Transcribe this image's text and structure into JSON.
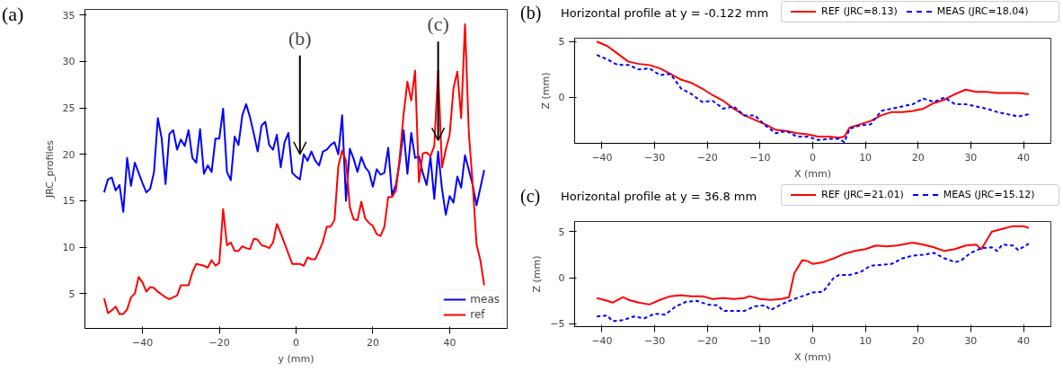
{
  "chart_data": [
    {
      "type": "line",
      "title": "(a)",
      "xlabel": "y (mm)",
      "ylabel": "JRC_profiles",
      "xlim": [
        -55,
        55
      ],
      "ylim": [
        1.25,
        35.6
      ],
      "xticks": [
        -40,
        -20,
        0,
        20,
        40
      ],
      "yticks": [
        5,
        10,
        15,
        20,
        25,
        30,
        35
      ],
      "grid": false,
      "legend": "bottom right",
      "annotations": [
        {
          "text": "(b)",
          "x": 1,
          "y": 20.0
        },
        {
          "text": "(c)",
          "x": 37,
          "y": 21.5
        }
      ],
      "series": [
        {
          "name": "meas",
          "color": "#0000ff",
          "x": [
            -50,
            -49,
            -48,
            -47,
            -46,
            -45,
            -44,
            -43,
            -42,
            -41,
            -40,
            -39,
            -38,
            -37,
            -36,
            -35,
            -34,
            -33,
            -32,
            -31,
            -30,
            -29,
            -28,
            -27,
            -26,
            -25,
            -24,
            -23,
            -22,
            -21,
            -20,
            -19,
            -18,
            -17,
            -16,
            -15,
            -14,
            -13,
            -12,
            -11,
            -10,
            -9,
            -8,
            -7,
            -6,
            -5,
            -4,
            -3,
            -2,
            -1,
            0,
            1,
            2,
            3,
            4,
            5,
            6,
            7,
            8,
            9,
            10,
            11,
            12,
            13,
            14,
            15,
            16,
            17,
            18,
            19,
            20,
            21,
            22,
            23,
            24,
            25,
            26,
            27,
            28,
            29,
            30,
            31,
            32,
            33,
            34,
            35,
            36,
            37,
            38,
            39,
            40,
            41,
            42,
            43,
            44,
            45,
            46,
            47,
            48,
            49
          ],
          "values": [
            15.9,
            17.3,
            17.5,
            16.1,
            16.7,
            13.8,
            19.6,
            16.6,
            19.1,
            18.0,
            16.9,
            15.9,
            16.3,
            18.1,
            23.9,
            21.7,
            16.8,
            22.2,
            22.6,
            20.5,
            21.6,
            20.9,
            22.6,
            19.6,
            19.1,
            22.7,
            17.9,
            18.8,
            18.1,
            21.7,
            21.7,
            24.9,
            18.1,
            17.2,
            21.9,
            21.0,
            24.2,
            25.4,
            24.0,
            22.2,
            20.3,
            23.1,
            23.5,
            21.0,
            20.5,
            22.1,
            18.6,
            21.3,
            22.3,
            18.0,
            17.6,
            17.3,
            20.0,
            19.3,
            20.3,
            19.3,
            18.8,
            20.3,
            20.5,
            21.0,
            21.3,
            20.0,
            24.2,
            15.0,
            20.6,
            19.5,
            18.1,
            19.7,
            18.6,
            18.1,
            16.5,
            18.4,
            17.8,
            18.0,
            20.7,
            15.6,
            16.7,
            19.2,
            22.6,
            17.9,
            22.3,
            19.6,
            19.8,
            18.0,
            16.7,
            19.7,
            15.2,
            20.3,
            16.3,
            13.5,
            15.5,
            14.8,
            17.6,
            16.4,
            19.9,
            18.3,
            16.7,
            14.5,
            16.4,
            18.3
          ]
        },
        {
          "name": "ref",
          "color": "#ff0000",
          "x": [
            -50,
            -49,
            -48,
            -47,
            -46,
            -45,
            -44,
            -43,
            -42,
            -41,
            -40,
            -39,
            -38,
            -37,
            -36,
            -35,
            -34,
            -33,
            -32,
            -31,
            -30,
            -29,
            -28,
            -27,
            -26,
            -25,
            -24,
            -23,
            -22,
            -21,
            -20,
            -19,
            -18,
            -17,
            -16,
            -15,
            -14,
            -13,
            -12,
            -11,
            -10,
            -9,
            -8,
            -7,
            -6,
            -5,
            -4,
            -3,
            -2,
            -1,
            0,
            1,
            2,
            3,
            4,
            5,
            6,
            7,
            8,
            9,
            10,
            11,
            12,
            13,
            14,
            15,
            16,
            17,
            18,
            19,
            20,
            21,
            22,
            23,
            24,
            25,
            26,
            27,
            28,
            29,
            30,
            31,
            32,
            33,
            34,
            35,
            36,
            37,
            38,
            39,
            40,
            41,
            42,
            43,
            44,
            45,
            46,
            47,
            48,
            49
          ],
          "values": [
            4.5,
            2.9,
            3.2,
            3.6,
            2.8,
            2.8,
            3.3,
            4.6,
            5.0,
            6.8,
            6.2,
            5.2,
            5.7,
            5.6,
            5.2,
            4.9,
            4.6,
            4.4,
            4.6,
            4.8,
            5.9,
            5.9,
            5.9,
            7.3,
            8.2,
            8.1,
            8.0,
            7.8,
            8.6,
            8.0,
            8.3,
            14.1,
            10.2,
            10.5,
            9.6,
            9.6,
            10.1,
            9.9,
            9.8,
            10.9,
            10.8,
            10.2,
            10.1,
            9.9,
            10.5,
            12.5,
            11.5,
            10.4,
            9.3,
            8.2,
            8.2,
            8.2,
            8.0,
            8.9,
            8.7,
            8.7,
            9.6,
            10.6,
            12.2,
            12.2,
            12.9,
            18.7,
            20.4,
            19.3,
            14.3,
            13.0,
            12.9,
            14.9,
            13.1,
            12.6,
            12.3,
            11.4,
            11.2,
            12.2,
            15.4,
            15.4,
            16.1,
            19.7,
            24.3,
            27.8,
            25.8,
            29.0,
            17.0,
            20.1,
            20.2,
            19.8,
            20.9,
            29.0,
            18.6,
            20.5,
            22.1,
            27.1,
            28.9,
            23.9,
            34.0,
            22.3,
            16.8,
            10.3,
            8.6,
            5.9
          ]
        }
      ]
    },
    {
      "type": "line",
      "title": "Horizontal profile at y = -0.122 mm",
      "xlabel": "X (mm)",
      "ylabel": "Z (mm)",
      "xlim": [
        -45.2,
        45.2
      ],
      "ylim": [
        -4.1,
        5.3
      ],
      "xticks": [
        -40,
        -30,
        -20,
        -10,
        0,
        10,
        20,
        30,
        40
      ],
      "yticks": [
        0,
        5
      ],
      "grid": false,
      "legend": "top",
      "annotations": [
        "(b)"
      ],
      "series": [
        {
          "name": "REF (JRC=8.13)",
          "color": "#ff0000",
          "line_style": "solid",
          "x": [
            -41,
            -39,
            -37,
            -35,
            -33,
            -31,
            -29,
            -27,
            -25,
            -23,
            -21,
            -19,
            -17,
            -15,
            -13,
            -11,
            -9,
            -7,
            -5,
            -3,
            -1,
            1,
            3,
            5,
            6,
            7,
            9,
            11,
            13,
            15,
            17,
            19,
            21,
            23,
            25,
            27,
            29,
            31,
            33,
            35,
            37,
            39,
            41
          ],
          "values": [
            5.0,
            4.6,
            3.9,
            3.2,
            3.0,
            2.9,
            2.6,
            2.1,
            1.6,
            1.3,
            0.8,
            0.2,
            -0.3,
            -1.0,
            -1.6,
            -2.0,
            -2.4,
            -2.9,
            -3.0,
            -3.2,
            -3.3,
            -3.5,
            -3.5,
            -3.6,
            -3.5,
            -2.7,
            -2.4,
            -2.1,
            -1.6,
            -1.3,
            -1.3,
            -1.2,
            -1.0,
            -0.5,
            -0.2,
            0.3,
            0.7,
            0.5,
            0.5,
            0.4,
            0.4,
            0.4,
            0.3
          ]
        },
        {
          "name": "MEAS (JRC=18.04)",
          "color": "#0000ff",
          "line_style": "dashed",
          "x": [
            -41,
            -39,
            -37,
            -35,
            -33,
            -31,
            -29,
            -27,
            -25,
            -23,
            -21,
            -19,
            -17,
            -15,
            -13,
            -11,
            -9,
            -7,
            -5,
            -3,
            -1,
            1,
            3,
            5,
            6,
            7,
            9,
            11,
            13,
            15,
            17,
            19,
            21,
            23,
            25,
            27,
            29,
            31,
            33,
            35,
            37,
            39,
            41
          ],
          "values": [
            3.8,
            3.4,
            2.9,
            2.9,
            2.5,
            2.6,
            2.0,
            2.1,
            0.8,
            0.3,
            -0.4,
            -0.3,
            -1.0,
            -0.8,
            -1.6,
            -1.6,
            -2.5,
            -3.2,
            -3.0,
            -3.5,
            -3.5,
            -3.8,
            -3.7,
            -3.7,
            -4.0,
            -2.8,
            -2.5,
            -2.4,
            -1.2,
            -1.0,
            -0.8,
            -0.6,
            -0.1,
            -0.4,
            0.0,
            -0.6,
            -0.6,
            -0.8,
            -1.0,
            -1.3,
            -1.5,
            -1.7,
            -1.5
          ]
        }
      ]
    },
    {
      "type": "line",
      "title": "Horizontal profile at y = 36.8 mm",
      "xlabel": "X (mm)",
      "ylabel": "Z (mm)",
      "xlim": [
        -45.2,
        45.2
      ],
      "ylim": [
        -5.3,
        6.1
      ],
      "xticks": [
        -40,
        -30,
        -20,
        -10,
        0,
        10,
        20,
        30,
        40
      ],
      "yticks": [
        -5,
        0,
        5
      ],
      "grid": false,
      "legend": "top",
      "annotations": [
        "(c)"
      ],
      "series": [
        {
          "name": "REF (JRC=21.01)",
          "color": "#ff0000",
          "line_style": "solid",
          "x": [
            -41,
            -39,
            -38,
            -36,
            -35,
            -33,
            -31,
            -29,
            -27,
            -25,
            -23,
            -21,
            -19,
            -17,
            -15,
            -13,
            -12,
            -10,
            -8,
            -6,
            -4.5,
            -3.5,
            -2,
            -1,
            0,
            2,
            4,
            6,
            8,
            10,
            12,
            14,
            16,
            19,
            21,
            23,
            25,
            27,
            29,
            31,
            32,
            34,
            36,
            38,
            40,
            41
          ],
          "values": [
            -2.2,
            -2.5,
            -2.7,
            -2.1,
            -2.4,
            -2.7,
            -2.9,
            -2.4,
            -2.0,
            -1.9,
            -2.0,
            -2.0,
            -2.3,
            -2.2,
            -2.3,
            -2.2,
            -2.0,
            -2.3,
            -2.4,
            -2.3,
            -2.1,
            0.5,
            1.9,
            1.8,
            1.5,
            1.7,
            2.1,
            2.6,
            2.9,
            3.1,
            3.5,
            3.4,
            3.5,
            3.8,
            3.6,
            3.3,
            2.9,
            3.1,
            3.5,
            3.6,
            3.1,
            5.0,
            5.3,
            5.6,
            5.6,
            5.4
          ]
        },
        {
          "name": "MEAS (JRC=15.12)",
          "color": "#0000ff",
          "line_style": "dashed",
          "x": [
            -41,
            -39,
            -38,
            -36,
            -34,
            -32,
            -30,
            -28,
            -26,
            -24,
            -22,
            -20,
            -18,
            -17,
            -15,
            -13,
            -11,
            -9,
            -8,
            -6,
            -4,
            -2,
            0,
            2,
            4,
            5,
            7,
            9,
            11,
            13,
            15,
            17,
            19,
            21,
            23,
            25,
            27,
            28,
            30,
            32,
            34,
            35,
            36,
            38,
            39,
            41
          ],
          "values": [
            -4.2,
            -4.1,
            -4.7,
            -4.6,
            -4.2,
            -4.4,
            -3.9,
            -4.0,
            -3.1,
            -2.6,
            -2.5,
            -2.9,
            -3.0,
            -3.6,
            -3.6,
            -3.6,
            -3.1,
            -3.0,
            -3.5,
            -2.9,
            -2.4,
            -2.0,
            -1.6,
            -1.5,
            0.0,
            0.3,
            0.3,
            0.6,
            1.3,
            1.4,
            1.5,
            2.1,
            2.4,
            2.5,
            2.7,
            2.1,
            1.7,
            1.8,
            2.7,
            3.2,
            3.3,
            2.9,
            3.6,
            3.5,
            3.0,
            3.7
          ]
        }
      ]
    }
  ]
}
